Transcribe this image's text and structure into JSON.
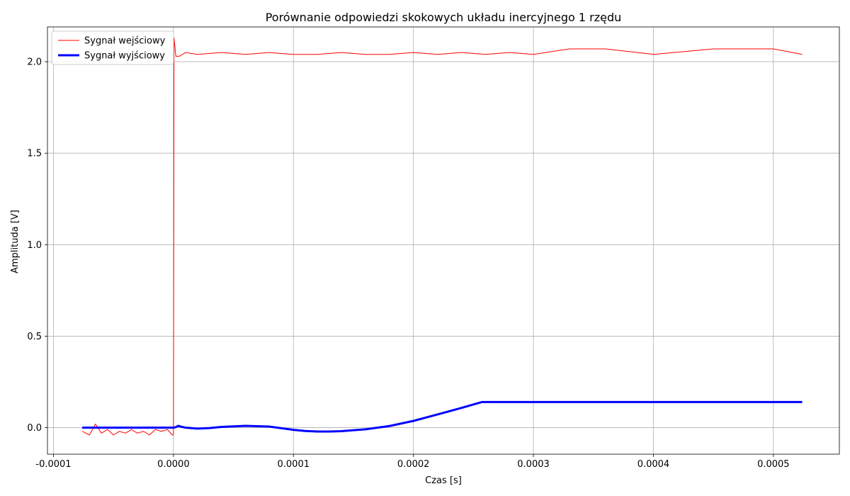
{
  "chart_data": {
    "type": "line",
    "title": "Porównanie odpowiedzi skokowych układu inercyjnego 1 rzędu",
    "xlabel": "Czas [s]",
    "ylabel": "Amplituda [V]",
    "xlim": [
      -0.000105,
      0.000555
    ],
    "ylim": [
      -0.145,
      2.19
    ],
    "xticks": [
      -0.0001,
      0.0,
      0.0001,
      0.0002,
      0.0003,
      0.0004,
      0.0005
    ],
    "xtick_labels": [
      "-0.0001",
      "0.0000",
      "0.0001",
      "0.0002",
      "0.0003",
      "0.0004",
      "0.0005"
    ],
    "yticks": [
      0.0,
      0.5,
      1.0,
      1.5,
      2.0
    ],
    "ytick_labels": [
      "0.0",
      "0.5",
      "1.0",
      "1.5",
      "2.0"
    ],
    "grid": true,
    "legend_position": "top-left",
    "series": [
      {
        "name": "Sygnał wejściowy",
        "color": "#ff0000",
        "line_width": 1,
        "x": [
          -7.6e-05,
          -7e-05,
          -6.5e-05,
          -6e-05,
          -5.5e-05,
          -5e-05,
          -4.5e-05,
          -4e-05,
          -3.5e-05,
          -3e-05,
          -2.5e-05,
          -2e-05,
          -1.5e-05,
          -1e-05,
          -5e-06,
          -1e-06,
          0.0,
          5e-07,
          2e-06,
          5e-06,
          1e-05,
          2e-05,
          4e-05,
          6e-05,
          8e-05,
          0.0001,
          0.00012,
          0.00014,
          0.00016,
          0.00018,
          0.0002,
          0.00022,
          0.00024,
          0.00026,
          0.00028,
          0.0003,
          0.00033,
          0.00036,
          0.0004,
          0.00045,
          0.0005,
          0.000524
        ],
        "y": [
          -0.02,
          -0.04,
          0.02,
          -0.03,
          -0.01,
          -0.04,
          -0.02,
          -0.03,
          -0.01,
          -0.03,
          -0.02,
          -0.04,
          -0.01,
          -0.02,
          -0.01,
          -0.04,
          -0.04,
          2.13,
          2.03,
          2.03,
          2.05,
          2.04,
          2.05,
          2.04,
          2.05,
          2.04,
          2.04,
          2.05,
          2.04,
          2.04,
          2.05,
          2.04,
          2.05,
          2.04,
          2.05,
          2.04,
          2.07,
          2.07,
          2.04,
          2.07,
          2.07,
          2.04
        ]
      },
      {
        "name": "Sygnał wyjściowy",
        "color": "#0000ff",
        "line_width": 3,
        "x": [
          -7.6e-05,
          -4e-05,
          -1e-05,
          0.0,
          2e-06,
          4e-06,
          6e-06,
          8e-06,
          1e-05,
          2e-05,
          3e-05,
          4e-05,
          6e-05,
          8e-05,
          0.0001,
          0.00011,
          0.00012,
          0.00013,
          0.00014,
          0.00016,
          0.00018,
          0.0002,
          0.00022,
          0.00024,
          0.000257,
          0.0003,
          0.0004,
          0.0005,
          0.000524
        ],
        "y": [
          0.0,
          0.0,
          0.0,
          0.0,
          0.003,
          0.01,
          0.006,
          0.003,
          0.0,
          -0.005,
          -0.002,
          0.004,
          0.01,
          0.006,
          -0.012,
          -0.018,
          -0.021,
          -0.021,
          -0.019,
          -0.009,
          0.009,
          0.037,
          0.072,
          0.108,
          0.14,
          0.14,
          0.14,
          0.14,
          0.14
        ]
      }
    ]
  }
}
